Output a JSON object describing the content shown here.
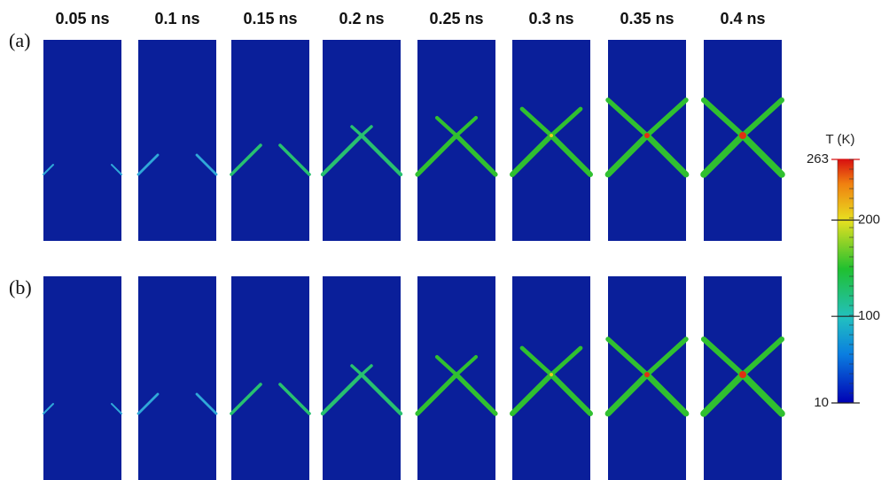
{
  "figure": {
    "time_labels": [
      "0.05 ns",
      "0.1 ns",
      "0.15 ns",
      "0.2 ns",
      "0.25 ns",
      "0.3 ns",
      "0.35 ns",
      "0.4 ns"
    ],
    "row_labels": [
      "(a)",
      "(b)"
    ],
    "colorbar": {
      "title": "T (K)",
      "range": [
        10,
        263
      ],
      "ticks": [
        263,
        200,
        100,
        10
      ]
    }
  }
}
